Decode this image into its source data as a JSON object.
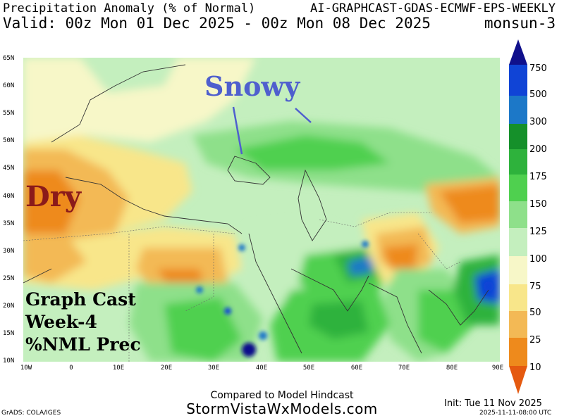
{
  "header": {
    "title": "Precipitation Anomaly (% of Normal)",
    "model": "AI-GRAPHCAST-GDAS-ECMWF-EPS-WEEKLY",
    "valid": "Valid: 00z Mon 01 Dec 2025 - 00z Mon 08 Dec 2025",
    "region": "monsun-3"
  },
  "map": {
    "lat_labels": [
      "65N",
      "60N",
      "55N",
      "50N",
      "45N",
      "40N",
      "35N",
      "30N",
      "25N",
      "20N",
      "15N",
      "10N"
    ],
    "lon_labels": [
      "10W",
      "0",
      "10E",
      "20E",
      "30E",
      "40E",
      "50E",
      "60E",
      "70E",
      "80E",
      "90E"
    ],
    "extent": {
      "lon": [
        -10,
        90
      ],
      "lat": [
        10,
        65
      ]
    }
  },
  "colorbar": {
    "labels": [
      "750",
      "500",
      "300",
      "200",
      "175",
      "150",
      "125",
      "100",
      "75",
      "50",
      "25",
      "10"
    ],
    "colors": [
      "#10108c",
      "#1044d6",
      "#1c78c8",
      "#15902a",
      "#2eb23c",
      "#4fd04f",
      "#8ee08a",
      "#c4efbe",
      "#f7f7c8",
      "#f8e68a",
      "#f3b955",
      "#ee8a1c",
      "#e55a10"
    ]
  },
  "annotations": {
    "snowy": "Snowy",
    "dry": "Dry",
    "model_note": [
      "Graph Cast",
      "Week-4",
      "%NML Prec"
    ]
  },
  "footer": {
    "compared": "Compared to Model Hindcast",
    "site": "StormVistaWxModels.com",
    "grads": "GrADS: COLA/IGES",
    "init": "Init: Tue 11 Nov 2025",
    "timestamp": "2025-11-11-08:00 UTC"
  }
}
